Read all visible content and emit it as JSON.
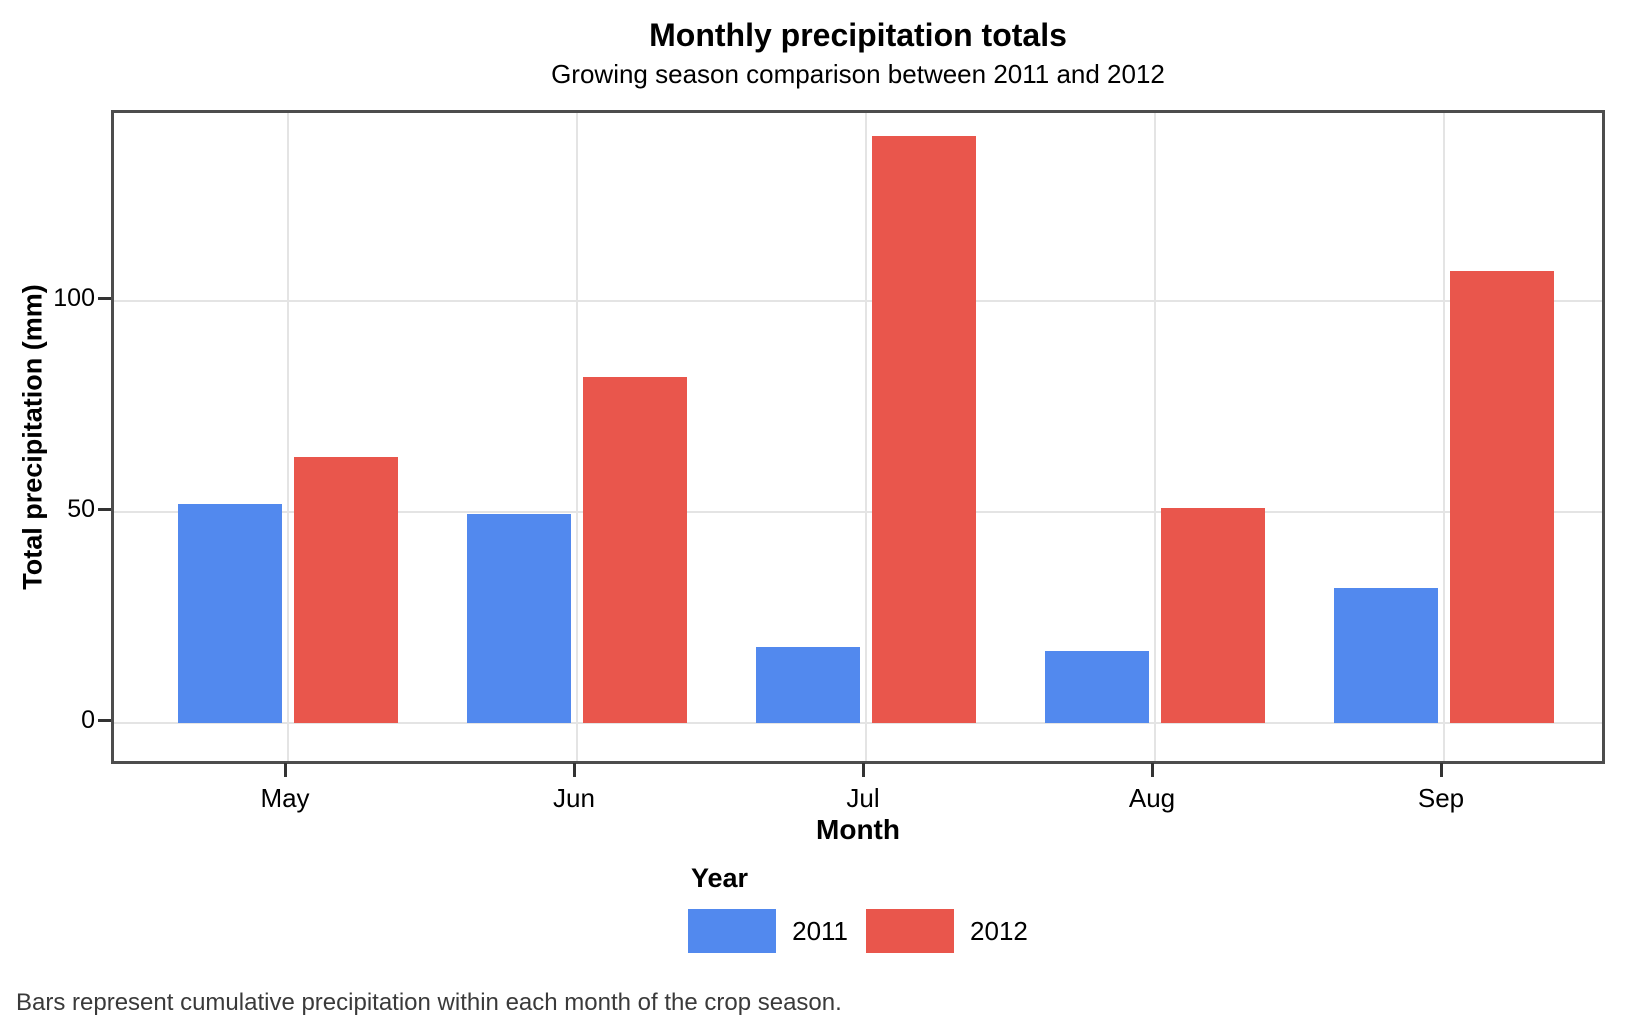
{
  "title": "Monthly precipitation totals",
  "subtitle": "Growing season comparison between 2011 and 2012",
  "caption": "Bars represent cumulative precipitation within each month of the crop season.",
  "chart_data": {
    "type": "bar",
    "title": "Monthly precipitation totals",
    "subtitle": "Growing season comparison between 2011 and 2012",
    "categories": [
      "May",
      "Jun",
      "Jul",
      "Aug",
      "Sep"
    ],
    "series": [
      {
        "name": "2011",
        "color": "#5289EE",
        "values": [
          52,
          49.5,
          18,
          17,
          32
        ]
      },
      {
        "name": "2012",
        "color": "#E9564C",
        "values": [
          63,
          82,
          139,
          51,
          107
        ]
      }
    ],
    "xlabel": "Month",
    "ylabel": "Total precipitation (mm)",
    "yticks": [
      0,
      50,
      100
    ],
    "ylim": [
      0,
      144.5
    ],
    "grid": "major only, light gray, on white panel with dark border",
    "legend_title": "Year",
    "legend_position": "bottom-center",
    "caption": "Bars represent cumulative precipitation within each month of the crop season."
  },
  "colors": {
    "bar_2011": "#5289EE",
    "bar_2012": "#E9564C",
    "gridline": "#E4E4E4",
    "panel_border": "#4D4D4D",
    "tick_mark": "#333333",
    "text": "#000000",
    "caption_text": "#3A3A3A"
  }
}
